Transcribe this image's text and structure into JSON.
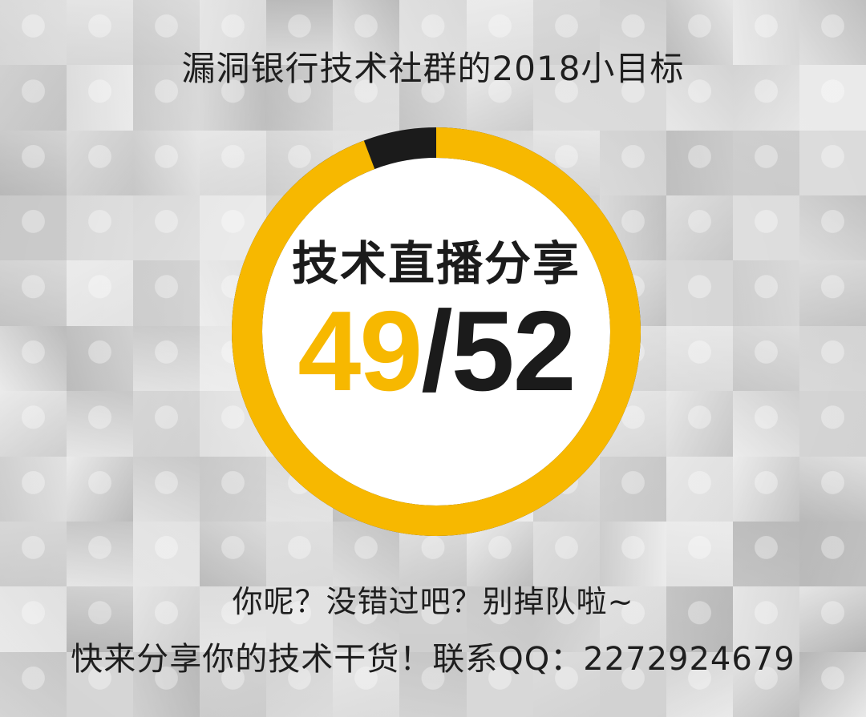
{
  "title": "漏洞银行技术社群的2018小目标",
  "progress": {
    "label": "技术直播分享",
    "done": "49",
    "separator": "/",
    "total": "52",
    "completed": 49,
    "goal": 52,
    "colors": {
      "done": "#f7b800",
      "remaining": "#1b1b1b"
    }
  },
  "footer": {
    "line1": "你呢？没错过吧？别掉队啦~",
    "line2": "快来分享你的技术干货！联系QQ：2272924679"
  },
  "background": {
    "description_icon": "avatar-mosaic"
  }
}
